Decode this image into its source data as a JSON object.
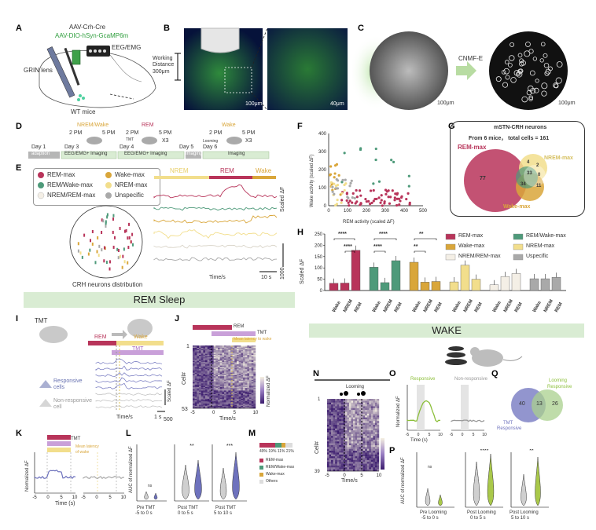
{
  "panel_letters": {
    "a": "A",
    "b": "B",
    "c": "C",
    "d": "D",
    "e": "E",
    "f": "F",
    "g": "G",
    "h": "H",
    "i": "I",
    "j": "J",
    "k": "K",
    "l": "L",
    "m": "M",
    "n": "N",
    "o": "O",
    "p": "P",
    "q": "Q"
  },
  "panel_a": {
    "virus1": "AAV-Crh-Cre",
    "virus2": "AAV-DIO-hSyn-GcaMP6m",
    "eeg": "EEG/EMG",
    "grin": "GRIN lens",
    "mice": "WT mice"
  },
  "panel_b": {
    "working": "Working",
    "distance": "Distance",
    "depth": "300μm",
    "scale1": "100μm",
    "scale2": "40μm"
  },
  "panel_c": {
    "method": "CNMF-E",
    "scale1": "100μm",
    "scale2": "100μm"
  },
  "panel_d": {
    "labels": [
      "Day 1",
      "Day 3",
      "Day 4",
      "Day 5",
      "Day 6"
    ],
    "segments": [
      "adaption",
      "EEG/EMG+ Imaging",
      "EEG/EMG+ Imaging",
      "Imaging",
      "Imaging"
    ],
    "nrem_wake": "NREM/Wake",
    "rem": "REM",
    "wake": "Wake",
    "time1": "2 PM",
    "time2": "5 PM",
    "tmt": "TMT",
    "x3": "X3",
    "looming": "Looming"
  },
  "panel_e": {
    "legend": [
      "REM-max",
      "Wake-max",
      "REM/Wake-max",
      "NREM-max",
      "NREM/REM-max",
      "Unspecific"
    ],
    "caption": "CRH neurons distribution",
    "states": [
      "NREM",
      "REM",
      "Wake"
    ],
    "ylabel": "Scaled ΔF",
    "scale": "1000",
    "time": "Time/s",
    "sec": "10 s"
  },
  "panel_f": {
    "ylabel": "Wake activity (scaled ΔF)",
    "xlabel": "REM activity (scaled ΔF)"
  },
  "panel_g": {
    "title": "mSTN-CRH neurons",
    "subtitle": "From 6 mice，  total cells = 161",
    "rem": "REM-max",
    "nrem": "NREM-max",
    "wake": "Wake-max",
    "n77": "77",
    "n4": "4",
    "n2": "2",
    "n33": "33",
    "n0": "0",
    "n34": "34",
    "n11": "11"
  },
  "banner_rem": "REM Sleep",
  "banner_wake": "WAKE",
  "panel_i": {
    "tmt": "TMT",
    "rem": "REM",
    "wake": "Wake",
    "tmt2": "TMT",
    "responsive": "Responsive",
    "cells": "cells",
    "nonresp": "Non-responsive",
    "cell": "cell",
    "time": "Time/s",
    "scaled": "Scaled ΔF",
    "scale": "500",
    "sec": "1 s"
  },
  "panel_j": {
    "rem": "REM",
    "tmt": "TMT",
    "latency": "Mean latency to wake",
    "ylabel": "Cell#",
    "time": "Time/s",
    "cb": "Normalized ΔF",
    "top": "1",
    "bottom": "53"
  },
  "panel_k": {
    "rem": "REM",
    "tmt": "TMT",
    "latency": "Mean latency",
    "latency2": "of wake",
    "ylabel": "Normalized ΔF",
    "time": "Time (s)"
  },
  "panel_l": {
    "ylabel": "AUC of normalized ΔF",
    "ns": "ns",
    "groups": [
      "Pre TMT",
      "Post TMT",
      "Post TMT"
    ],
    "ranges": [
      "-5 to 0 s",
      "0 to 5 s",
      "5 to 10 s"
    ]
  },
  "panel_m": {
    "pcts": "49%  19% 11% 21%",
    "legend": [
      "REM-max",
      "REM/Wake-max",
      "Wake-max",
      "Others"
    ]
  },
  "panel_n": {
    "looming": "Looming",
    "ylabel": "Cell#",
    "time": "Time/s",
    "top": "1",
    "bottom": "39",
    "cb": "Normalized ΔF"
  },
  "panel_o": {
    "responsive": "Responsive",
    "nonresponsive": "Non-responsive",
    "ylabel": "Normalized ΔF",
    "time": "Time (s)"
  },
  "panel_p": {
    "ylabel": "AUC of normalized ΔF",
    "ns": "ns",
    "groups": [
      "Pre Looming",
      "Post Looming",
      "Post Looming"
    ],
    "ranges": [
      "-5 to 0 s",
      "0 to 5 s",
      "5 to 10 s"
    ]
  },
  "panel_q": {
    "tmt": "TMT",
    "tmtr": "Responsive",
    "loom": "Looming",
    "loomr": "Responsive",
    "n40": "40",
    "n13": "13",
    "n26": "26"
  },
  "colors": {
    "rem": "#b8345a",
    "remwake": "#4e9a7a",
    "wake": "#d9a63a",
    "nrem": "#f2de8c",
    "nremrem": "#f4efe6",
    "unspec": "#a9a9a9",
    "banner": "#d9ecd3"
  },
  "chart_data": [
    {
      "type": "bar",
      "panel": "H",
      "ylabel": "Scaled ΔF",
      "ylim": [
        0,
        250
      ],
      "yticks": [
        0,
        50,
        100,
        150,
        200,
        250
      ],
      "groups": [
        "REM-max",
        "REM/Wake-max",
        "Wake-max",
        "NREM-max",
        "NREM/REM-max",
        "Uspecific"
      ],
      "categories": [
        "Wake",
        "NREM",
        "REM"
      ],
      "series": [
        {
          "name": "REM-max",
          "values": [
            32,
            33,
            178
          ]
        },
        {
          "name": "REM/Wake-max",
          "values": [
            103,
            35,
            132
          ]
        },
        {
          "name": "Wake-max",
          "values": [
            125,
            37,
            40
          ]
        },
        {
          "name": "NREM-max",
          "values": [
            38,
            112,
            50
          ]
        },
        {
          "name": "NREM/REM-max",
          "values": [
            25,
            62,
            75
          ]
        },
        {
          "name": "Uspecific",
          "values": [
            52,
            52,
            58
          ]
        }
      ],
      "significance": [
        "****",
        "****",
        "****",
        "****",
        "**",
        "**"
      ]
    },
    {
      "type": "scatter",
      "panel": "F",
      "xlabel": "REM activity (scaled ΔF)",
      "ylabel": "Wake activity (scaled ΔF)",
      "xlim": [
        0,
        500
      ],
      "ylim": [
        0,
        400
      ],
      "xticks": [
        0,
        100,
        200,
        300,
        400,
        500
      ],
      "yticks": [
        0,
        100,
        200,
        300,
        400
      ]
    }
  ]
}
